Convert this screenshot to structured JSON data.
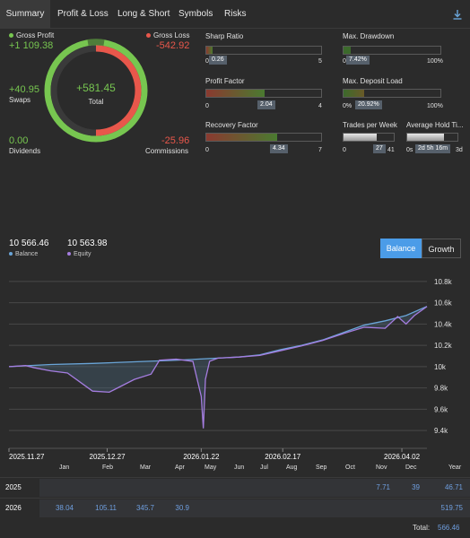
{
  "tabs": [
    {
      "label": "Summary",
      "active": true
    },
    {
      "label": "Profit & Loss",
      "active": false
    },
    {
      "label": "Long & Short",
      "active": false
    },
    {
      "label": "Symbols",
      "active": false
    },
    {
      "label": "Risks",
      "active": false
    }
  ],
  "download_icon": "download-icon",
  "summary": {
    "gross_profit_label": "Gross Profit",
    "gross_profit": "+1 109.38",
    "gross_loss_label": "Gross Loss",
    "gross_loss": "-542.92",
    "swaps_value": "+40.95",
    "swaps_label": "Swaps",
    "total_value": "+581.45",
    "total_label": "Total",
    "dividends_value": "0.00",
    "dividends_label": "Dividends",
    "commissions_value": "-25.96",
    "commissions_label": "Commissions",
    "colors": {
      "profit": "#77c650",
      "loss": "#e8574b"
    }
  },
  "metrics": {
    "sharp_ratio": {
      "title": "Sharp Ratio",
      "value": "0.26",
      "min": "0",
      "max": "5",
      "fraction": 0.052
    },
    "max_drawdown": {
      "title": "Max. Drawdown",
      "value": "7.42%",
      "min": "0%",
      "max": "100%",
      "fraction": 0.0742
    },
    "profit_factor": {
      "title": "Profit Factor",
      "value": "2.04",
      "min": "0",
      "max": "4",
      "fraction": 0.51
    },
    "max_deposit_load": {
      "title": "Max. Deposit Load",
      "value": "20.92%",
      "min": "0%",
      "max": "100%",
      "fraction": 0.2092
    },
    "recovery_factor": {
      "title": "Recovery Factor",
      "value": "4.34",
      "min": "0",
      "max": "7",
      "fraction": 0.62
    },
    "trades_per_week": {
      "title": "Trades per Week",
      "value": "27",
      "min": "0",
      "max": "41",
      "fraction": 0.66
    },
    "avg_hold_time": {
      "title": "Average Hold Ti...",
      "value": "2d 5h 16m",
      "min": "0s",
      "max": "3d",
      "fraction": 0.74
    }
  },
  "balance_header": {
    "balance_value": "10 566.46",
    "balance_label": "Balance",
    "equity_value": "10 563.98",
    "equity_label": "Equity",
    "balance_color": "#6aa5d8",
    "equity_color": "#a57de0"
  },
  "toggle": {
    "balance": "Balance",
    "growth": "Growth",
    "active": "Balance"
  },
  "chart_data": {
    "type": "line",
    "x_ticks": [
      "2025.11.27",
      "2025.12.27",
      "2026.01.22",
      "2026.02.17",
      "2026.04.02"
    ],
    "y_ticks": [
      "10.8k",
      "10.6k",
      "10.4k",
      "10.2k",
      "10k",
      "9.8k",
      "9.6k",
      "9.4k"
    ],
    "ylim": [
      9300,
      10900
    ],
    "grid": true,
    "series": [
      {
        "name": "Balance",
        "color": "#6aa5d8",
        "x": [
          0,
          0.1,
          0.2,
          0.3,
          0.4,
          0.5,
          0.55,
          0.6,
          0.65,
          0.7,
          0.75,
          0.8,
          0.85,
          0.9,
          0.95,
          1.0
        ],
        "y": [
          10000,
          10020,
          10030,
          10045,
          10060,
          10080,
          10090,
          10110,
          10160,
          10200,
          10250,
          10320,
          10390,
          10430,
          10480,
          10566
        ]
      },
      {
        "name": "Equity",
        "color": "#a57de0",
        "x": [
          0,
          0.04,
          0.06,
          0.1,
          0.14,
          0.2,
          0.24,
          0.26,
          0.3,
          0.34,
          0.36,
          0.4,
          0.44,
          0.46,
          0.465,
          0.47,
          0.48,
          0.5,
          0.55,
          0.6,
          0.65,
          0.7,
          0.75,
          0.8,
          0.85,
          0.9,
          0.93,
          0.95,
          0.97,
          1.0
        ],
        "y": [
          10000,
          10010,
          9990,
          9960,
          9940,
          9770,
          9760,
          9800,
          9880,
          9930,
          10060,
          10070,
          10050,
          9720,
          9420,
          9880,
          10050,
          10080,
          10090,
          10105,
          10150,
          10195,
          10245,
          10310,
          10370,
          10360,
          10470,
          10400,
          10480,
          10564
        ]
      }
    ]
  },
  "monthly_table": {
    "months": [
      "Jan",
      "Feb",
      "Mar",
      "Apr",
      "May",
      "Jun",
      "Jul",
      "Aug",
      "Sep",
      "Oct",
      "Nov",
      "Dec",
      "Year"
    ],
    "rows": [
      {
        "year": "2025",
        "values": [
          "",
          "",
          "",
          "",
          "",
          "",
          "",
          "",
          "",
          "",
          "7.71",
          "39",
          "46.71"
        ]
      },
      {
        "year": "2026",
        "values": [
          "38.04",
          "105.11",
          "345.7",
          "30.9",
          "",
          "",
          "",
          "",
          "",
          "",
          "",
          "",
          "519.75"
        ]
      }
    ],
    "total_label": "Total:",
    "total_value": "566.46"
  }
}
